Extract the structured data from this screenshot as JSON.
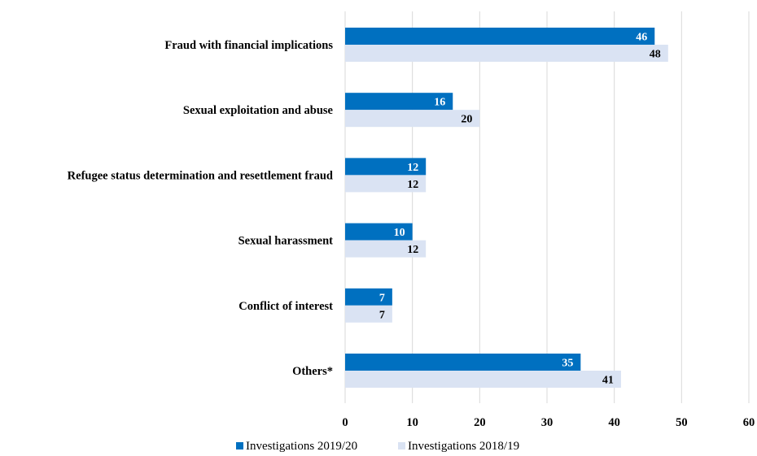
{
  "chart_data": {
    "type": "bar",
    "orientation": "horizontal",
    "categories": [
      "Fraud with financial implications",
      "Sexual exploitation and abuse",
      "Refugee status determination and resettlement fraud",
      "Sexual harassment",
      "Conflict of interest",
      "Others*"
    ],
    "series": [
      {
        "name": "Investigations 2019/20",
        "values": [
          46,
          16,
          12,
          10,
          7,
          35
        ],
        "color": "#0070c0",
        "label_color": "#ffffff"
      },
      {
        "name": "Investigations 2018/19",
        "values": [
          48,
          20,
          12,
          12,
          7,
          41
        ],
        "color": "#dae3f3",
        "label_color": "#000000"
      }
    ],
    "xlim": [
      0,
      60
    ],
    "x_ticks": [
      "0",
      "10",
      "20",
      "30",
      "40",
      "50",
      "60"
    ],
    "grid": true,
    "legend_position": "bottom-left"
  }
}
